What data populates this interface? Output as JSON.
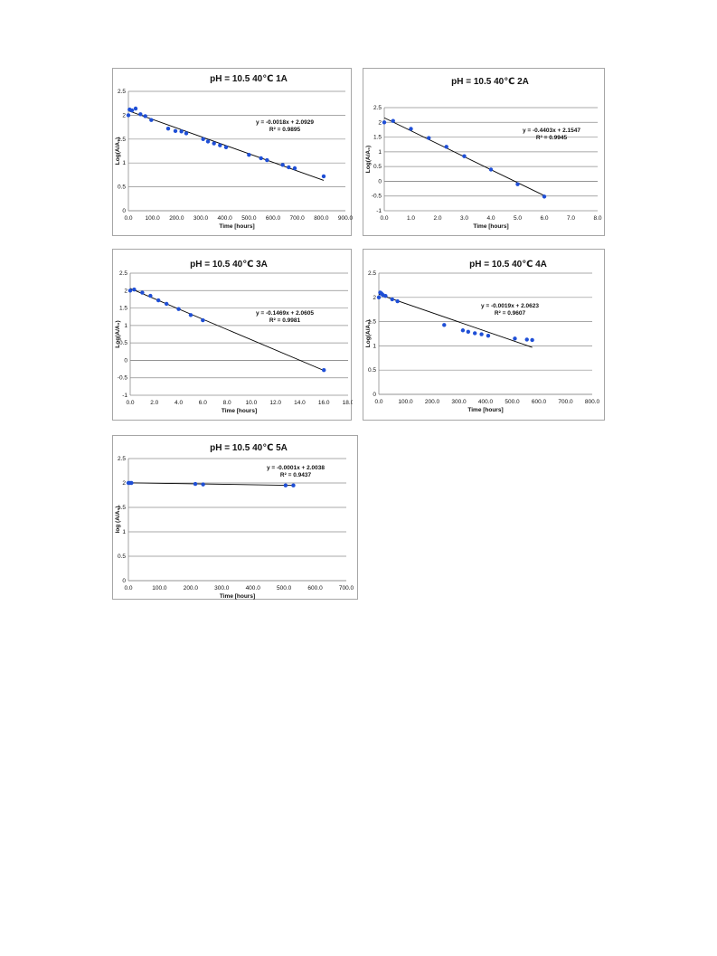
{
  "chart_data": [
    {
      "type": "scatter",
      "title": "pH = 10.5     40℃  1A",
      "xlabel": "Time [hours]",
      "ylabel": "Log(A/A₀)",
      "xlim": [
        0,
        900
      ],
      "ylim": [
        0,
        2.5
      ],
      "xticks": [
        "0.0",
        "100.0",
        "200.0",
        "300.0",
        "400.0",
        "500.0",
        "600.0",
        "700.0",
        "800.0",
        "900.0"
      ],
      "yticks": [
        "0",
        "0.5",
        "1",
        "1.5",
        "2",
        "2.5"
      ],
      "grid": "horizontal",
      "points_x": [
        0,
        5,
        15,
        30,
        50,
        70,
        95,
        165,
        195,
        220,
        240,
        310,
        330,
        355,
        380,
        405,
        500,
        550,
        575,
        640,
        665,
        690,
        810
      ],
      "points_y": [
        2.0,
        2.12,
        2.1,
        2.14,
        2.02,
        1.98,
        1.9,
        1.72,
        1.67,
        1.66,
        1.62,
        1.5,
        1.45,
        1.41,
        1.37,
        1.33,
        1.17,
        1.1,
        1.06,
        0.96,
        0.91,
        0.89,
        0.72
      ],
      "trend": {
        "slope": -0.0018,
        "intercept": 2.0929,
        "x_start": 0,
        "x_end": 810
      },
      "equation": "y = -0.0018x + 2.0929",
      "r2": "R² = 0.9895"
    },
    {
      "type": "scatter",
      "title": "pH = 10.5     40℃  2A",
      "xlabel": "Time [hours]",
      "ylabel": "Log(A/A₀)",
      "xlim": [
        0,
        8
      ],
      "ylim": [
        -1,
        2.5
      ],
      "xticks": [
        "0.0",
        "1.0",
        "2.0",
        "3.0",
        "4.0",
        "5.0",
        "6.0",
        "7.0",
        "8.0"
      ],
      "yticks": [
        "-1",
        "-0.5",
        "0",
        "0.5",
        "1",
        "1.5",
        "2",
        "2.5"
      ],
      "grid": "horizontal",
      "points_x": [
        0,
        0.33,
        1.0,
        1.67,
        2.33,
        3.0,
        4.0,
        5.0,
        6.0
      ],
      "points_y": [
        2.0,
        2.05,
        1.78,
        1.47,
        1.17,
        0.85,
        0.4,
        -0.1,
        -0.52
      ],
      "trend": {
        "slope": -0.4403,
        "intercept": 2.1547,
        "x_start": 0,
        "x_end": 6
      },
      "equation": "y = -0.4403x + 2.1547",
      "r2": "R² = 0.9945"
    },
    {
      "type": "scatter",
      "title": "pH = 10.5     40℃  3A",
      "xlabel": "Time [hours]",
      "ylabel": "Log(A/A₀)",
      "xlim": [
        0,
        18
      ],
      "ylim": [
        -1,
        2.5
      ],
      "xticks": [
        "0.0",
        "2.0",
        "4.0",
        "6.0",
        "8.0",
        "10.0",
        "12.0",
        "14.0",
        "16.0",
        "18.0"
      ],
      "yticks": [
        "-1",
        "-0.5",
        "0",
        "0.5",
        "1",
        "1.5",
        "2",
        "2.5"
      ],
      "grid": "horizontal",
      "points_x": [
        0,
        0.33,
        1.0,
        1.67,
        2.33,
        3.0,
        4.0,
        5.0,
        6.0,
        16.0
      ],
      "points_y": [
        2.0,
        2.03,
        1.94,
        1.85,
        1.72,
        1.62,
        1.47,
        1.3,
        1.15,
        -0.28
      ],
      "trend": {
        "slope": -0.1469,
        "intercept": 2.0605,
        "x_start": 0,
        "x_end": 16
      },
      "equation": "y = -0.1469x + 2.0605",
      "r2": "R² = 0.9981"
    },
    {
      "type": "scatter",
      "title": "pH = 10.5     40℃  4A",
      "xlabel": "Time [hours]",
      "ylabel": "Log(A/A₀)",
      "xlim": [
        0,
        800
      ],
      "ylim": [
        0,
        2.5
      ],
      "xticks": [
        "0.0",
        "100.0",
        "200.0",
        "300.0",
        "400.0",
        "500.0",
        "600.0",
        "700.0",
        "800.0"
      ],
      "yticks": [
        "0",
        "0.5",
        "1",
        "1.5",
        "2",
        "2.5"
      ],
      "grid": "horizontal",
      "points_x": [
        0,
        5,
        10,
        15,
        25,
        50,
        70,
        245,
        315,
        335,
        360,
        385,
        410,
        510,
        555,
        575
      ],
      "points_y": [
        2.0,
        2.1,
        2.08,
        2.05,
        2.03,
        1.96,
        1.92,
        1.43,
        1.32,
        1.29,
        1.26,
        1.24,
        1.21,
        1.15,
        1.13,
        1.12
      ],
      "trend": {
        "slope": -0.0019,
        "intercept": 2.0623,
        "x_start": 0,
        "x_end": 575
      },
      "equation": "y = -0.0019x + 2.0623",
      "r2": "R² = 0.9607"
    },
    {
      "type": "scatter",
      "title": "pH = 10.5     40℃  5A",
      "xlabel": "Time [hours]",
      "ylabel": "log (A/A₀)",
      "xlim": [
        0,
        700
      ],
      "ylim": [
        0,
        2.5
      ],
      "xticks": [
        "0.0",
        "100.0",
        "200.0",
        "300.0",
        "400.0",
        "500.0",
        "600.0",
        "700.0"
      ],
      "yticks": [
        "0",
        "0.5",
        "1",
        "1.5",
        "2",
        "2.5"
      ],
      "grid": "horizontal",
      "points_x": [
        0,
        5,
        10,
        215,
        240,
        505,
        530
      ],
      "points_y": [
        2.0,
        2.0,
        2.0,
        1.98,
        1.97,
        1.95,
        1.95
      ],
      "trend": {
        "slope": -0.0001,
        "intercept": 2.0038,
        "x_start": 0,
        "x_end": 530
      },
      "equation": "y = -0.0001x + 2.0038",
      "r2": "R² = 0.9437"
    }
  ]
}
